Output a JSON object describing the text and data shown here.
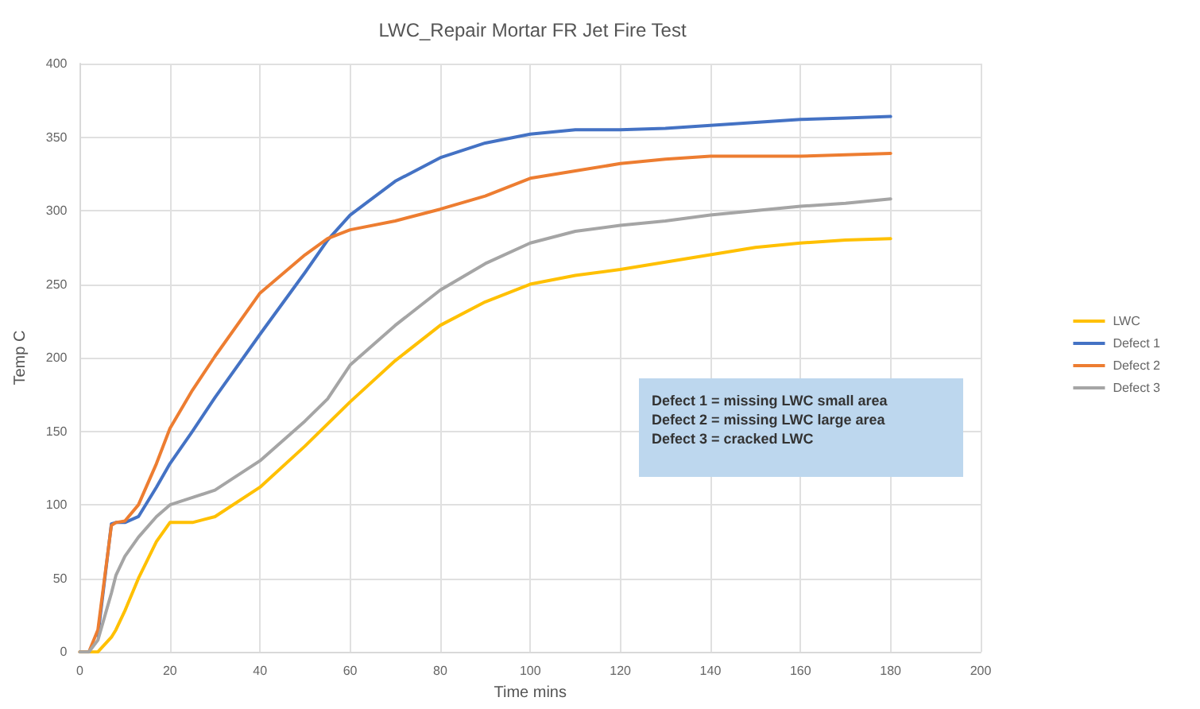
{
  "chart_data": {
    "type": "line",
    "title": "LWC_Repair Mortar FR Jet Fire Test",
    "xlabel": "Time mins",
    "ylabel": "Temp C",
    "x": [
      0,
      2,
      4,
      7,
      8,
      10,
      13,
      17,
      20,
      25,
      30,
      40,
      50,
      55,
      60,
      70,
      80,
      90,
      100,
      110,
      120,
      130,
      140,
      150,
      160,
      170,
      180
    ],
    "series": [
      {
        "name": "LWC",
        "color": "#ffc000",
        "values": [
          0,
          0,
          0,
          10,
          15,
          28,
          50,
          75,
          88,
          88,
          92,
          112,
          140,
          155,
          170,
          198,
          222,
          238,
          250,
          256,
          260,
          265,
          270,
          275,
          278,
          280,
          281
        ]
      },
      {
        "name": "Defect 1",
        "color": "#4472c4",
        "values": [
          null,
          null,
          11,
          87,
          88,
          88,
          92,
          112,
          128,
          150,
          173,
          216,
          258,
          280,
          297,
          320,
          336,
          346,
          352,
          355,
          355,
          356,
          358,
          360,
          362,
          363,
          364
        ]
      },
      {
        "name": "Defect 2",
        "color": "#ed7d31",
        "values": [
          0,
          0,
          15,
          86,
          88,
          89,
          100,
          128,
          152,
          178,
          201,
          244,
          270,
          281,
          287,
          293,
          301,
          310,
          322,
          327,
          332,
          335,
          337,
          337,
          337,
          338,
          339
        ]
      },
      {
        "name": "Defect 3",
        "color": "#a5a5a5",
        "values": [
          0,
          0,
          8,
          40,
          52,
          65,
          78,
          92,
          100,
          105,
          110,
          130,
          157,
          172,
          195,
          222,
          246,
          264,
          278,
          286,
          290,
          293,
          297,
          300,
          303,
          305,
          308
        ]
      }
    ],
    "annotations": [
      "Defect 1 = missing LWC small area\nDefect 2 = missing LWC large area\nDefect 3 = cracked LWC"
    ],
    "xlim": [
      0,
      200
    ],
    "xticks": [
      0,
      20,
      40,
      60,
      80,
      100,
      120,
      140,
      160,
      180,
      200
    ],
    "ylim": [
      0,
      400
    ],
    "yticks": [
      0,
      50,
      100,
      150,
      200,
      250,
      300,
      350,
      400
    ],
    "grid": true,
    "legend": "right",
    "marker": "none",
    "line_style": "solid"
  }
}
